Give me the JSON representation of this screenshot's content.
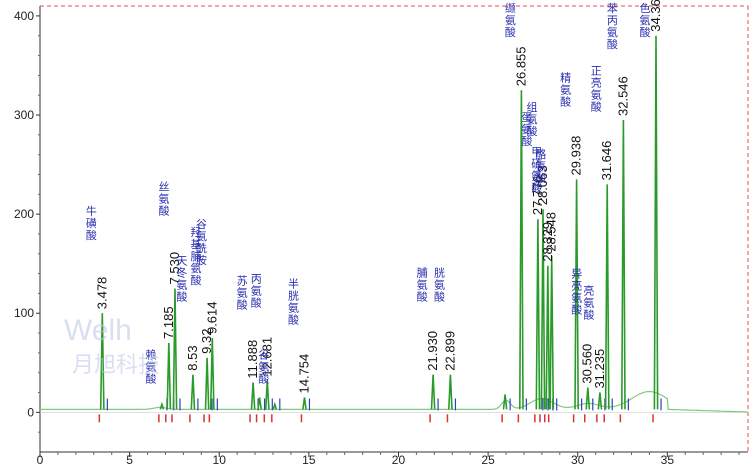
{
  "chart_data": {
    "type": "line",
    "title": "",
    "xlabel": "",
    "ylabel": "",
    "xlim": [
      0,
      39.5
    ],
    "ylim": [
      -40,
      410
    ],
    "x_ticks": [
      0,
      5,
      10,
      15,
      20,
      25,
      30,
      35
    ],
    "y_ticks": [
      0,
      100,
      200,
      300,
      400
    ],
    "grid": false,
    "trace_color": "#2a9a2a",
    "baseline_color": "#7fc97f",
    "marker_red": "#e03030",
    "marker_blue": "#3040c0",
    "label_text_color": "#2a2fb0",
    "peaks": [
      {
        "rt": 3.478,
        "height": 100,
        "label": "3.478",
        "name": "牛磺酸"
      },
      {
        "rt": 6.8,
        "height": 8,
        "label": "",
        "name": "赖氨酸"
      },
      {
        "rt": 7.185,
        "height": 70,
        "label": "7.185",
        "name": ""
      },
      {
        "rt": 7.53,
        "height": 125,
        "label": "7.530",
        "name": "丝氨酸"
      },
      {
        "rt": 8.53,
        "height": 38,
        "label": "8.53",
        "name": "天冬氨酸"
      },
      {
        "rt": 9.32,
        "height": 55,
        "label": "9.32",
        "name": "羟基脯氨酸"
      },
      {
        "rt": 9.614,
        "height": 75,
        "label": "9.614",
        "name": "谷氨酰胺"
      },
      {
        "rt": 11.888,
        "height": 30,
        "label": "11.888",
        "name": "苏氨酸"
      },
      {
        "rt": 12.25,
        "height": 15,
        "label": "",
        "name": ""
      },
      {
        "rt": 12.681,
        "height": 32,
        "label": "12.681",
        "name": "丙氨酸"
      },
      {
        "rt": 13.1,
        "height": 8,
        "label": "",
        "name": "谷氨酸"
      },
      {
        "rt": 14.754,
        "height": 15,
        "label": "14.754",
        "name": "半胱氨酸"
      },
      {
        "rt": 21.93,
        "height": 38,
        "label": "21.930",
        "name": "脯氨酸"
      },
      {
        "rt": 22.899,
        "height": 38,
        "label": "22.899",
        "name": "胱氨酸"
      },
      {
        "rt": 25.95,
        "height": 18,
        "label": "",
        "name": ""
      },
      {
        "rt": 26.855,
        "height": 325,
        "label": "26.855",
        "name": "缬氨酸"
      },
      {
        "rt": 27.776,
        "height": 195,
        "label": "27.776",
        "name": "蛋氨酸"
      },
      {
        "rt": 28.063,
        "height": 205,
        "label": "28.063",
        "name": "组氨酸"
      },
      {
        "rt": 28.329,
        "height": 148,
        "label": "28.329",
        "name": "甲硫氨酸"
      },
      {
        "rt": 28.548,
        "height": 158,
        "label": "28.548",
        "name": "酪氨酸"
      },
      {
        "rt": 29.938,
        "height": 235,
        "label": "29.938",
        "name": "精氨酸"
      },
      {
        "rt": 30.56,
        "height": 25,
        "label": "30.560",
        "name": "异亮氨酸"
      },
      {
        "rt": 31.235,
        "height": 20,
        "label": "31.235",
        "name": "亮氨酸"
      },
      {
        "rt": 31.646,
        "height": 230,
        "label": "31.646",
        "name": "正亮氨酸"
      },
      {
        "rt": 32.546,
        "height": 295,
        "label": "32.546",
        "name": "苯丙氨酸"
      },
      {
        "rt": 34.369,
        "height": 380,
        "label": "34.369",
        "name": "色氨酸"
      }
    ]
  },
  "watermark": {
    "brand": "Welh",
    "cn": "月旭科技"
  }
}
